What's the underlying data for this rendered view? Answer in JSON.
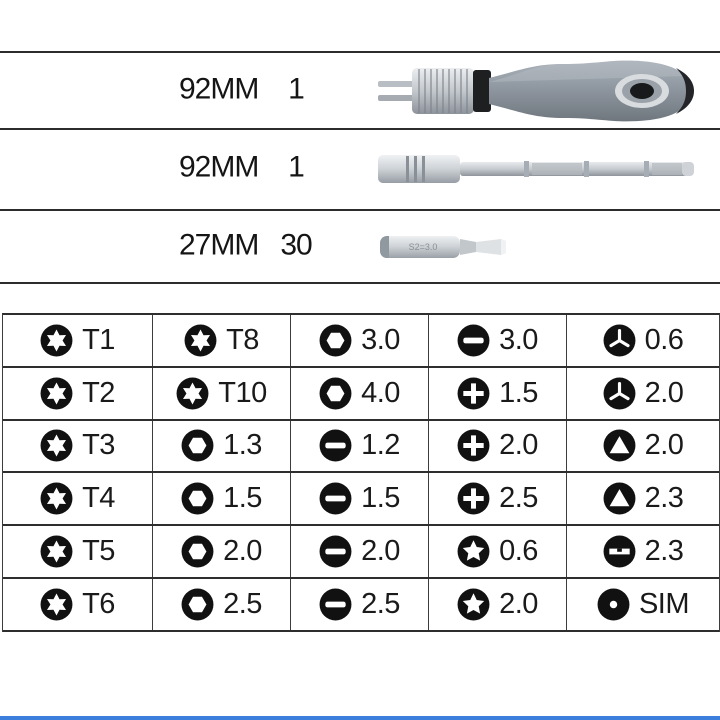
{
  "page": {
    "background": "#ffffff",
    "line_color": "#2c2c2c",
    "bottom_bar_color": "#3c7edb"
  },
  "components": [
    {
      "name": "driver-handle",
      "length": "92MM",
      "qty": "1"
    },
    {
      "name": "extension-rod",
      "length": "92MM",
      "qty": "1"
    },
    {
      "name": "screw-bit",
      "length": "27MM",
      "qty": "30",
      "marking": "S2=3.0"
    }
  ],
  "bit_table": {
    "icon_colors": {
      "fill": "#111111",
      "glyph": "#ffffff"
    },
    "rows": [
      [
        {
          "icon": "torx",
          "label": "T1"
        },
        {
          "icon": "torx",
          "label": "T8"
        },
        {
          "icon": "hex",
          "label": "3.0"
        },
        {
          "icon": "slotted",
          "label": "3.0"
        },
        {
          "icon": "tripoint",
          "label": "0.6"
        }
      ],
      [
        {
          "icon": "torx",
          "label": "T2"
        },
        {
          "icon": "torx",
          "label": "T10"
        },
        {
          "icon": "hex",
          "label": "4.0"
        },
        {
          "icon": "phillips",
          "label": "1.5"
        },
        {
          "icon": "tripoint",
          "label": "2.0"
        }
      ],
      [
        {
          "icon": "torx",
          "label": "T3"
        },
        {
          "icon": "hex",
          "label": "1.3"
        },
        {
          "icon": "slotted",
          "label": "1.2"
        },
        {
          "icon": "phillips",
          "label": "2.0"
        },
        {
          "icon": "triangle",
          "label": "2.0"
        }
      ],
      [
        {
          "icon": "torx",
          "label": "T4"
        },
        {
          "icon": "hex",
          "label": "1.5"
        },
        {
          "icon": "slotted",
          "label": "1.5"
        },
        {
          "icon": "phillips",
          "label": "2.5"
        },
        {
          "icon": "triangle",
          "label": "2.3"
        }
      ],
      [
        {
          "icon": "torx",
          "label": "T5"
        },
        {
          "icon": "hex",
          "label": "2.0"
        },
        {
          "icon": "slotted",
          "label": "2.0"
        },
        {
          "icon": "pentalobe",
          "label": "0.6"
        },
        {
          "icon": "u-type",
          "label": "2.3"
        }
      ],
      [
        {
          "icon": "torx",
          "label": "T6"
        },
        {
          "icon": "hex",
          "label": "2.5"
        },
        {
          "icon": "slotted",
          "label": "2.5"
        },
        {
          "icon": "pentalobe",
          "label": "2.0"
        },
        {
          "icon": "sim",
          "label": "SIM"
        }
      ]
    ]
  }
}
